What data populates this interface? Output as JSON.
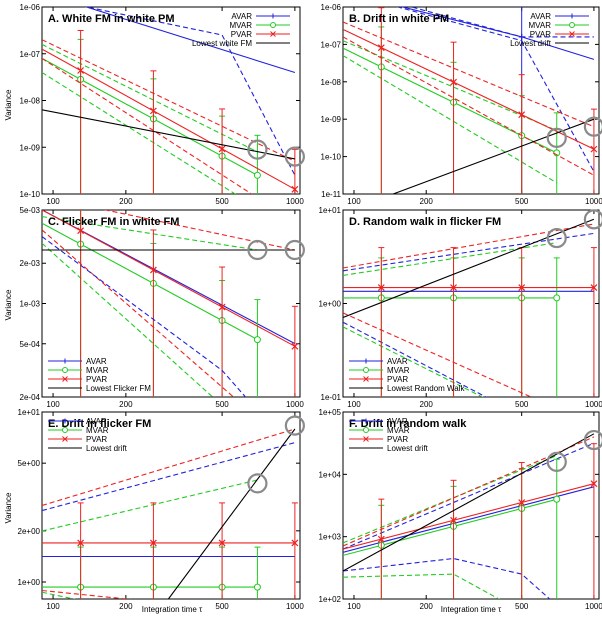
{
  "colors": {
    "avar": "#2222dd",
    "mvar": "#22cc22",
    "pvar": "#ee2222",
    "ref": "#000000",
    "circle": "#8a8a8a",
    "frame": "#000000"
  },
  "labels": {
    "ylabel": "Variance",
    "xlabel": "Integration time τ"
  },
  "chart_data": [
    {
      "type": "line",
      "title": "A. White FM in white PM",
      "log_x": true,
      "log_y": true,
      "xlim": [
        90,
        1050
      ],
      "ylim_exp": [
        -10,
        -6
      ],
      "x_ticks": [
        100,
        200,
        500,
        1000
      ],
      "x_tick_labels": [
        "100",
        "200",
        "500",
        "1000"
      ],
      "y_ticks_exp": [
        -10,
        -9,
        -8,
        -7,
        -6
      ],
      "y_tick_labels": [
        "1e-10",
        "1e-09",
        "1e-08",
        "1e-07",
        "1e-06"
      ],
      "legend": [
        "AVAR",
        "MVAR",
        "PVAR",
        "Lowest white FM"
      ],
      "legend_pos": "top-right",
      "circles": [
        [
          700,
          -9.05
        ],
        [
          1000,
          -9.2
        ]
      ],
      "series": [
        {
          "kind": "avar",
          "x": [
            90,
            1000
          ],
          "y": [
            -5.7,
            -7.4
          ]
        },
        {
          "kind": "avar",
          "style": "dash",
          "x": [
            90,
            1000
          ],
          "y": [
            -5.6,
            -5.85
          ]
        },
        {
          "kind": "avar",
          "style": "dash",
          "x": [
            90,
            500,
            1000
          ],
          "y": [
            -5.8,
            -6.6,
            -9.6
          ]
        },
        {
          "kind": "mvar",
          "x": [
            90,
            700
          ],
          "y": [
            -7.1,
            -9.6
          ],
          "markers": [
            130,
            260,
            500,
            700
          ],
          "errorbars": true
        },
        {
          "kind": "mvar",
          "style": "dash",
          "x": [
            90,
            700
          ],
          "y": [
            -6.8,
            -9.1
          ]
        },
        {
          "kind": "mvar",
          "style": "dash",
          "x": [
            90,
            700
          ],
          "y": [
            -7.4,
            -10.3
          ]
        },
        {
          "kind": "pvar",
          "x": [
            90,
            1000
          ],
          "y": [
            -6.9,
            -9.9
          ],
          "markers": [
            130,
            260,
            500,
            1000
          ],
          "errorbars": true
        },
        {
          "kind": "pvar",
          "style": "dash",
          "x": [
            90,
            1000
          ],
          "y": [
            -6.7,
            -9.3
          ]
        },
        {
          "kind": "pvar",
          "style": "dash",
          "x": [
            90,
            1000
          ],
          "y": [
            -7.1,
            -10.6
          ]
        },
        {
          "kind": "ref",
          "x": [
            90,
            1000
          ],
          "y": [
            -8.2,
            -9.25
          ]
        }
      ]
    },
    {
      "type": "line",
      "title": "B. Drift in white PM",
      "log_x": true,
      "log_y": true,
      "xlim": [
        90,
        1050
      ],
      "ylim_exp": [
        -11,
        -6
      ],
      "x_ticks": [
        100,
        200,
        500,
        1000
      ],
      "x_tick_labels": [
        "100",
        "200",
        "500",
        "1000"
      ],
      "y_ticks_exp": [
        -11,
        -10,
        -9,
        -8,
        -7,
        -6
      ],
      "y_tick_labels": [
        "1e-11",
        "1e-10",
        "1e-09",
        "1e-08",
        "1e-07",
        "1e-06"
      ],
      "legend": [
        "AVAR",
        "MVAR",
        "PVAR",
        "Lowest drift"
      ],
      "legend_pos": "top-right",
      "circles": [
        [
          700,
          -9.5
        ],
        [
          1000,
          -9.2
        ]
      ],
      "series": [
        {
          "kind": "avar",
          "x": [
            90,
            500,
            1000
          ],
          "y": [
            -5.6,
            -6.8,
            -7.4
          ],
          "markers": [
            500
          ],
          "errorbars": true
        },
        {
          "kind": "avar",
          "style": "dash",
          "x": [
            90,
            500,
            1000
          ],
          "y": [
            -5.5,
            -6.8,
            -6.8
          ]
        },
        {
          "kind": "avar",
          "style": "dash",
          "x": [
            90,
            500,
            1000
          ],
          "y": [
            -5.6,
            -6.9,
            -10.4
          ]
        },
        {
          "kind": "mvar",
          "x": [
            90,
            700
          ],
          "y": [
            -7.1,
            -9.9
          ],
          "markers": [
            130,
            260,
            500,
            700
          ],
          "errorbars": true
        },
        {
          "kind": "mvar",
          "style": "dash",
          "x": [
            90,
            700
          ],
          "y": [
            -6.9,
            -9.3
          ]
        },
        {
          "kind": "mvar",
          "style": "dash",
          "x": [
            90,
            700
          ],
          "y": [
            -7.3,
            -10.7
          ]
        },
        {
          "kind": "pvar",
          "x": [
            90,
            1000
          ],
          "y": [
            -6.6,
            -9.8
          ],
          "markers": [
            130,
            260,
            500,
            1000
          ],
          "errorbars": true
        },
        {
          "kind": "pvar",
          "style": "dash",
          "x": [
            90,
            1000
          ],
          "y": [
            -6.4,
            -9.2
          ]
        },
        {
          "kind": "pvar",
          "style": "dash",
          "x": [
            90,
            1000
          ],
          "y": [
            -6.8,
            -10.5
          ]
        },
        {
          "kind": "ref",
          "x": [
            90,
            1000
          ],
          "y": [
            -11.5,
            -9.0
          ]
        }
      ]
    },
    {
      "type": "line",
      "title": "C. Flicker FM in white FM",
      "log_x": true,
      "log_y": true,
      "xlim": [
        90,
        1050
      ],
      "ylim_exp": [
        -3.699,
        -2.301
      ],
      "x_ticks": [
        100,
        200,
        500,
        1000
      ],
      "x_tick_labels": [
        "100",
        "200",
        "500",
        "1000"
      ],
      "y_ticks_exp": [
        -3.699,
        -3.301,
        -3.0,
        -2.699,
        -2.301
      ],
      "y_tick_labels": [
        "2e-04",
        "5e-04",
        "1e-03",
        "2e-03",
        "5e-03"
      ],
      "legend": [
        "AVAR",
        "MVAR",
        "PVAR",
        "Lowest Flicker FM"
      ],
      "legend_pos": "bottom-left",
      "circles": [
        [
          700,
          -2.6
        ],
        [
          1000,
          -2.6
        ]
      ],
      "series": [
        {
          "kind": "avar",
          "x": [
            90,
            1000
          ],
          "y": [
            -2.3,
            -3.3
          ]
        },
        {
          "kind": "mvar",
          "x": [
            90,
            700
          ],
          "y": [
            -2.4,
            -3.27
          ],
          "markers": [
            130,
            260,
            500,
            700
          ],
          "errorbars": true
        },
        {
          "kind": "mvar",
          "style": "dash",
          "x": [
            90,
            700
          ],
          "y": [
            -2.35,
            -2.6
          ]
        },
        {
          "kind": "mvar",
          "style": "dash",
          "x": [
            90,
            700
          ],
          "y": [
            -2.55,
            -4.0
          ]
        },
        {
          "kind": "pvar",
          "x": [
            90,
            1000
          ],
          "y": [
            -2.3,
            -3.32
          ],
          "markers": [
            130,
            260,
            500,
            1000
          ],
          "errorbars": true
        },
        {
          "kind": "pvar",
          "style": "dash",
          "x": [
            90,
            1000
          ],
          "y": [
            -2.2,
            -2.6
          ]
        },
        {
          "kind": "pvar",
          "style": "dash",
          "x": [
            90,
            1000
          ],
          "y": [
            -2.45,
            -4.1
          ]
        },
        {
          "kind": "avar",
          "style": "dash",
          "x": [
            90,
            500,
            700
          ],
          "y": [
            -2.5,
            -3.5,
            -3.8
          ]
        },
        {
          "kind": "ref",
          "x": [
            90,
            1000
          ],
          "y": [
            -2.6,
            -2.6
          ]
        }
      ]
    },
    {
      "type": "line",
      "title": "D. Random walk in flicker FM",
      "log_x": true,
      "log_y": true,
      "xlim": [
        90,
        1050
      ],
      "ylim_exp": [
        -1,
        1
      ],
      "x_ticks": [
        100,
        200,
        500,
        1000
      ],
      "x_tick_labels": [
        "100",
        "200",
        "500",
        "1000"
      ],
      "y_ticks_exp": [
        -1,
        0,
        1
      ],
      "y_tick_labels": [
        "1e-01",
        "1e+00",
        "1e+01"
      ],
      "legend": [
        "AVAR",
        "MVAR",
        "PVAR",
        "Lowest Random Walk"
      ],
      "legend_pos": "bottom-left",
      "circles": [
        [
          700,
          0.7
        ],
        [
          1000,
          0.9
        ]
      ],
      "series": [
        {
          "kind": "avar",
          "x": [
            90,
            1000
          ],
          "y": [
            0.13,
            0.13
          ]
        },
        {
          "kind": "avar",
          "style": "dash",
          "x": [
            90,
            500
          ],
          "y": [
            -0.2,
            -1.2
          ]
        },
        {
          "kind": "avar",
          "style": "dash",
          "x": [
            90,
            1000
          ],
          "y": [
            0.35,
            0.75
          ]
        },
        {
          "kind": "mvar",
          "x": [
            90,
            700
          ],
          "y": [
            0.06,
            0.06
          ],
          "markers": [
            130,
            260,
            500,
            700
          ],
          "errorbars": true
        },
        {
          "kind": "mvar",
          "style": "dash",
          "x": [
            90,
            700
          ],
          "y": [
            0.3,
            0.65
          ]
        },
        {
          "kind": "mvar",
          "style": "dash",
          "x": [
            90,
            700
          ],
          "y": [
            -0.25,
            -1.4
          ]
        },
        {
          "kind": "pvar",
          "x": [
            90,
            1000
          ],
          "y": [
            0.17,
            0.17
          ],
          "markers": [
            130,
            260,
            500,
            1000
          ],
          "errorbars": true
        },
        {
          "kind": "pvar",
          "style": "dash",
          "x": [
            90,
            1000
          ],
          "y": [
            0.38,
            0.85
          ]
        },
        {
          "kind": "pvar",
          "style": "dash",
          "x": [
            90,
            1000
          ],
          "y": [
            -0.1,
            -1.3
          ]
        },
        {
          "kind": "ref",
          "x": [
            90,
            1000
          ],
          "y": [
            -0.15,
            0.9
          ]
        }
      ]
    },
    {
      "type": "line",
      "title": "E. Drift in flicker FM",
      "log_x": true,
      "log_y": true,
      "xlim": [
        90,
        1050
      ],
      "ylim_exp": [
        -0.1,
        1
      ],
      "x_ticks": [
        100,
        200,
        500,
        1000
      ],
      "x_tick_labels": [
        "100",
        "200",
        "500",
        "1000"
      ],
      "y_ticks_exp": [
        0,
        0.301,
        0.699,
        1
      ],
      "y_tick_labels": [
        "1e+00",
        "2e+00",
        "5e+00",
        "1e+01"
      ],
      "legend": [
        "AVAR",
        "MVAR",
        "PVAR",
        "Lowest drift"
      ],
      "legend_pos": "top-left",
      "circles": [
        [
          700,
          0.58
        ],
        [
          1000,
          0.92
        ]
      ],
      "series": [
        {
          "kind": "avar",
          "x": [
            90,
            1000
          ],
          "y": [
            0.15,
            0.15
          ]
        },
        {
          "kind": "avar",
          "style": "dash",
          "x": [
            90,
            1000
          ],
          "y": [
            0.42,
            0.82
          ]
        },
        {
          "kind": "mvar",
          "x": [
            90,
            700
          ],
          "y": [
            -0.03,
            -0.03
          ],
          "markers": [
            130,
            260,
            500,
            700
          ],
          "errorbars": true
        },
        {
          "kind": "mvar",
          "style": "dash",
          "x": [
            90,
            700
          ],
          "y": [
            0.3,
            0.6
          ]
        },
        {
          "kind": "mvar",
          "style": "dash",
          "x": [
            90,
            260
          ],
          "y": [
            -0.06,
            -0.2
          ]
        },
        {
          "kind": "pvar",
          "x": [
            90,
            1000
          ],
          "y": [
            0.23,
            0.23
          ],
          "markers": [
            130,
            260,
            500,
            1000
          ],
          "errorbars": true
        },
        {
          "kind": "pvar",
          "style": "dash",
          "x": [
            90,
            1000
          ],
          "y": [
            0.45,
            0.9
          ]
        },
        {
          "kind": "pvar",
          "style": "dash",
          "x": [
            90,
            1000
          ],
          "y": [
            -0.05,
            -0.2
          ]
        },
        {
          "kind": "ref",
          "x": [
            300,
            1000
          ],
          "y": [
            -0.1,
            0.9
          ]
        }
      ]
    },
    {
      "type": "line",
      "title": "F. Drift in random walk",
      "log_x": true,
      "log_y": true,
      "xlim": [
        90,
        1050
      ],
      "ylim_exp": [
        2,
        5
      ],
      "x_ticks": [
        100,
        200,
        500,
        1000
      ],
      "x_tick_labels": [
        "100",
        "200",
        "500",
        "1000"
      ],
      "y_ticks_exp": [
        2,
        3,
        4,
        5
      ],
      "y_tick_labels": [
        "1e+02",
        "1e+03",
        "1e+04",
        "1e+05"
      ],
      "legend": [
        "AVAR",
        "MVAR",
        "PVAR",
        "Lowest drift"
      ],
      "legend_pos": "top-left",
      "circles": [
        [
          700,
          4.2
        ],
        [
          1000,
          4.55
        ]
      ],
      "series": [
        {
          "kind": "avar",
          "x": [
            90,
            1000
          ],
          "y": [
            2.75,
            3.8
          ]
        },
        {
          "kind": "avar",
          "style": "dash",
          "x": [
            90,
            1000
          ],
          "y": [
            2.8,
            4.5
          ]
        },
        {
          "kind": "avar",
          "style": "dash",
          "x": [
            90,
            260,
            500,
            700
          ],
          "y": [
            2.45,
            2.65,
            2.4,
            1.9
          ]
        },
        {
          "kind": "mvar",
          "x": [
            90,
            700
          ],
          "y": [
            2.7,
            3.6
          ],
          "markers": [
            130,
            260,
            500,
            700
          ],
          "errorbars": true
        },
        {
          "kind": "mvar",
          "style": "dash",
          "x": [
            90,
            700
          ],
          "y": [
            2.9,
            4.3
          ]
        },
        {
          "kind": "mvar",
          "style": "dash",
          "x": [
            90,
            260,
            500
          ],
          "y": [
            2.35,
            2.4,
            1.8
          ]
        },
        {
          "kind": "pvar",
          "x": [
            90,
            1000
          ],
          "y": [
            2.8,
            3.85
          ],
          "markers": [
            130,
            260,
            500,
            1000
          ],
          "errorbars": true
        },
        {
          "kind": "pvar",
          "style": "dash",
          "x": [
            90,
            1000
          ],
          "y": [
            2.85,
            4.6
          ]
        },
        {
          "kind": "ref",
          "x": [
            90,
            1000
          ],
          "y": [
            2.45,
            4.65
          ]
        }
      ]
    }
  ]
}
